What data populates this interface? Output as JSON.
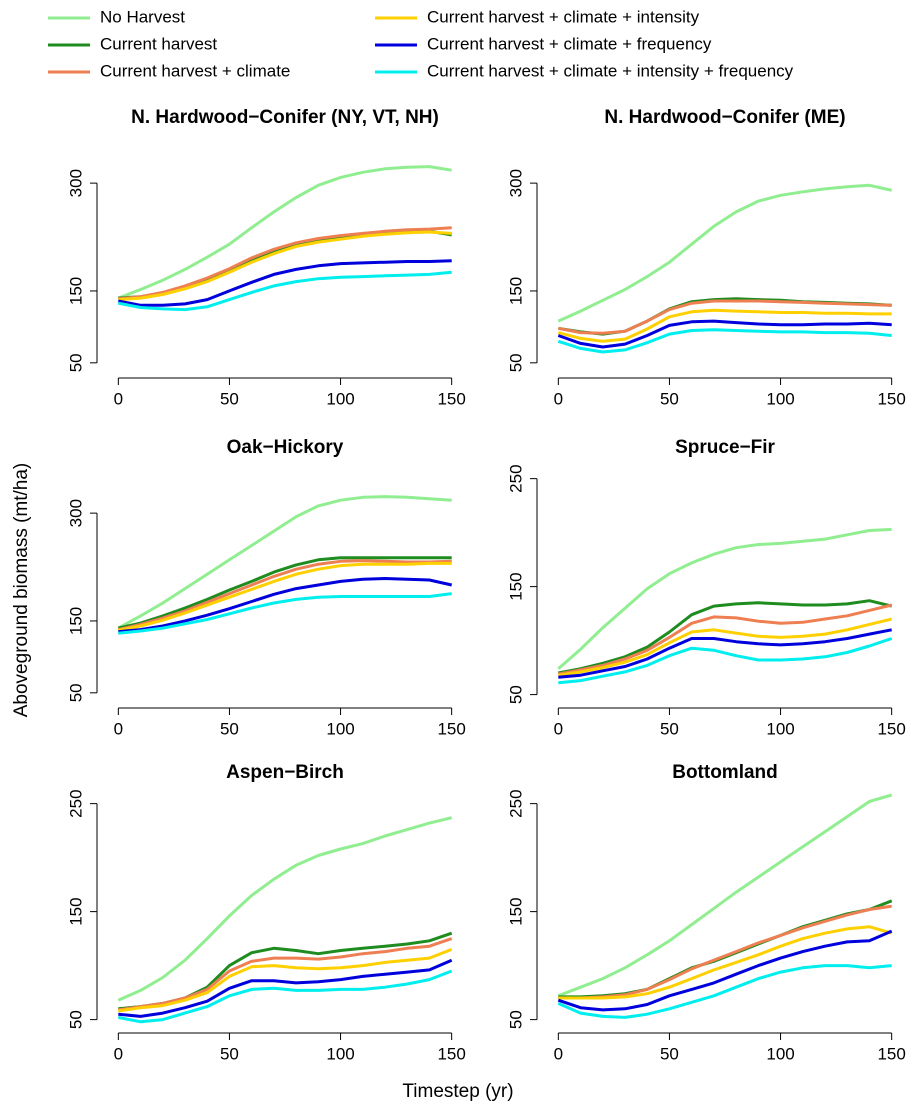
{
  "ylabel": "Aboveground biomass (mt/ha)",
  "xlabel": "Timestep (yr)",
  "chart_data": [
    {
      "type": "line",
      "title": "N. Hardwood−Conifer (NY, VT, NH)",
      "x": [
        0,
        10,
        20,
        30,
        40,
        50,
        60,
        70,
        80,
        90,
        100,
        110,
        120,
        130,
        140,
        150
      ],
      "xlim": [
        -6,
        156
      ],
      "ylim": [
        40,
        360
      ],
      "xticks": [
        0,
        50,
        100,
        150
      ],
      "yticks": [
        50,
        150,
        300
      ],
      "series": [
        {
          "name": "No Harvest",
          "color": "#90ee90",
          "values": [
            140,
            152,
            165,
            180,
            197,
            215,
            238,
            260,
            280,
            297,
            308,
            315,
            320,
            322,
            323,
            318
          ]
        },
        {
          "name": "Current harvest",
          "color": "#1f8c1f",
          "values": [
            140,
            142,
            147,
            155,
            165,
            178,
            192,
            205,
            215,
            221,
            225,
            228,
            230,
            232,
            233,
            228
          ]
        },
        {
          "name": "Current harvest + climate",
          "color": "#ee7f52",
          "values": [
            139,
            142,
            148,
            157,
            168,
            181,
            196,
            208,
            217,
            223,
            227,
            230,
            233,
            235,
            236,
            238
          ]
        },
        {
          "name": "Current harvest + climate + intensity",
          "color": "#ffd000",
          "values": [
            138,
            140,
            145,
            153,
            163,
            176,
            190,
            202,
            212,
            218,
            222,
            226,
            229,
            231,
            232,
            230
          ]
        },
        {
          "name": "Current harvest + climate + frequency",
          "color": "#0000dd",
          "values": [
            136,
            130,
            130,
            132,
            138,
            150,
            162,
            173,
            180,
            185,
            188,
            189,
            190,
            191,
            191,
            192
          ]
        },
        {
          "name": "Current harvest + climate + intensity + frequency",
          "color": "#00eeee",
          "values": [
            133,
            127,
            125,
            124,
            128,
            138,
            148,
            157,
            163,
            167,
            169,
            170,
            171,
            172,
            173,
            176
          ]
        }
      ]
    },
    {
      "type": "line",
      "title": "N. Hardwood−Conifer (ME)",
      "x": [
        0,
        10,
        20,
        30,
        40,
        50,
        60,
        70,
        80,
        90,
        100,
        110,
        120,
        130,
        140,
        150
      ],
      "xlim": [
        -6,
        156
      ],
      "ylim": [
        40,
        360
      ],
      "xticks": [
        0,
        50,
        100,
        150
      ],
      "yticks": [
        50,
        150,
        300
      ],
      "series": [
        {
          "name": "No Harvest",
          "color": "#90ee90",
          "values": [
            108,
            122,
            137,
            152,
            170,
            190,
            215,
            240,
            260,
            275,
            283,
            288,
            292,
            295,
            297,
            290
          ]
        },
        {
          "name": "Current harvest",
          "color": "#1f8c1f",
          "values": [
            98,
            93,
            90,
            94,
            108,
            125,
            135,
            138,
            139,
            138,
            137,
            135,
            134,
            133,
            132,
            130
          ]
        },
        {
          "name": "Current harvest + climate",
          "color": "#ee7f52",
          "values": [
            98,
            92,
            91,
            94,
            108,
            124,
            133,
            136,
            136,
            136,
            135,
            134,
            133,
            132,
            131,
            130
          ]
        },
        {
          "name": "Current harvest + climate + intensity",
          "color": "#ffd000",
          "values": [
            92,
            84,
            80,
            83,
            97,
            114,
            121,
            123,
            122,
            121,
            120,
            120,
            119,
            119,
            118,
            118
          ]
        },
        {
          "name": "Current harvest + climate + frequency",
          "color": "#0000dd",
          "values": [
            88,
            77,
            72,
            76,
            88,
            102,
            107,
            108,
            106,
            104,
            103,
            103,
            104,
            104,
            105,
            103
          ]
        },
        {
          "name": "Current harvest + climate + intensity + frequency",
          "color": "#00eeee",
          "values": [
            80,
            70,
            65,
            68,
            78,
            90,
            95,
            96,
            95,
            94,
            93,
            93,
            92,
            92,
            91,
            88
          ]
        }
      ]
    },
    {
      "type": "line",
      "title": "Oak−Hickory",
      "x": [
        0,
        10,
        20,
        30,
        40,
        50,
        60,
        70,
        80,
        90,
        100,
        110,
        120,
        130,
        140,
        150
      ],
      "xlim": [
        -6,
        156
      ],
      "ylim": [
        40,
        360
      ],
      "xticks": [
        0,
        50,
        100,
        150
      ],
      "yticks": [
        50,
        150,
        300
      ],
      "series": [
        {
          "name": "No Harvest",
          "color": "#90ee90",
          "values": [
            140,
            157,
            175,
            195,
            215,
            235,
            255,
            275,
            295,
            310,
            318,
            322,
            323,
            322,
            320,
            318
          ]
        },
        {
          "name": "Current harvest",
          "color": "#1f8c1f",
          "values": [
            140,
            147,
            157,
            168,
            180,
            193,
            205,
            218,
            228,
            235,
            238,
            238,
            238,
            238,
            238,
            238
          ]
        },
        {
          "name": "Current harvest + climate",
          "color": "#ee7f52",
          "values": [
            138,
            145,
            154,
            164,
            176,
            188,
            200,
            212,
            222,
            229,
            233,
            234,
            233,
            232,
            232,
            233
          ]
        },
        {
          "name": "Current harvest + climate + intensity",
          "color": "#ffd000",
          "values": [
            137,
            143,
            151,
            161,
            172,
            183,
            194,
            205,
            215,
            222,
            227,
            229,
            229,
            229,
            230,
            230
          ]
        },
        {
          "name": "Current harvest + climate + frequency",
          "color": "#0000dd",
          "values": [
            135,
            138,
            143,
            150,
            158,
            167,
            177,
            187,
            195,
            200,
            205,
            208,
            209,
            208,
            207,
            200
          ]
        },
        {
          "name": "Current harvest + climate + intensity + frequency",
          "color": "#00eeee",
          "values": [
            133,
            136,
            140,
            146,
            152,
            160,
            168,
            175,
            180,
            183,
            184,
            184,
            184,
            184,
            184,
            188
          ]
        }
      ]
    },
    {
      "type": "line",
      "title": "Spruce−Fir",
      "x": [
        0,
        10,
        20,
        30,
        40,
        50,
        60,
        70,
        80,
        90,
        100,
        110,
        120,
        130,
        140,
        150
      ],
      "xlim": [
        -6,
        156
      ],
      "ylim": [
        45,
        258
      ],
      "xticks": [
        0,
        50,
        100,
        150
      ],
      "yticks": [
        50,
        150,
        250
      ],
      "series": [
        {
          "name": "No Harvest",
          "color": "#90ee90",
          "values": [
            74,
            92,
            112,
            130,
            148,
            162,
            172,
            180,
            186,
            189,
            190,
            192,
            194,
            198,
            202,
            203
          ]
        },
        {
          "name": "Current harvest",
          "color": "#1f8c1f",
          "values": [
            70,
            74,
            79,
            85,
            94,
            108,
            124,
            132,
            134,
            135,
            134,
            133,
            133,
            134,
            137,
            132
          ]
        },
        {
          "name": "Current harvest + climate",
          "color": "#ee7f52",
          "values": [
            69,
            73,
            77,
            83,
            91,
            103,
            116,
            122,
            121,
            118,
            116,
            117,
            120,
            123,
            128,
            133
          ]
        },
        {
          "name": "Current harvest + climate + intensity",
          "color": "#ffd000",
          "values": [
            68,
            71,
            75,
            80,
            87,
            98,
            108,
            110,
            107,
            104,
            103,
            104,
            106,
            110,
            115,
            120
          ]
        },
        {
          "name": "Current harvest + climate + frequency",
          "color": "#0000dd",
          "values": [
            66,
            68,
            72,
            76,
            83,
            93,
            102,
            102,
            99,
            97,
            96,
            97,
            99,
            102,
            106,
            110
          ]
        },
        {
          "name": "Current harvest + climate + intensity + frequency",
          "color": "#00eeee",
          "values": [
            61,
            63,
            67,
            71,
            77,
            86,
            93,
            91,
            86,
            82,
            82,
            83,
            85,
            89,
            95,
            102
          ]
        }
      ]
    },
    {
      "type": "line",
      "title": "Aspen−Birch",
      "x": [
        0,
        10,
        20,
        30,
        40,
        50,
        60,
        70,
        80,
        90,
        100,
        110,
        120,
        130,
        140,
        150
      ],
      "xlim": [
        -6,
        156
      ],
      "ylim": [
        45,
        258
      ],
      "xticks": [
        0,
        50,
        100,
        150
      ],
      "yticks": [
        50,
        150,
        250
      ],
      "series": [
        {
          "name": "No Harvest",
          "color": "#90ee90",
          "values": [
            68,
            77,
            89,
            105,
            125,
            146,
            165,
            180,
            193,
            202,
            208,
            213,
            220,
            226,
            232,
            237
          ]
        },
        {
          "name": "Current harvest",
          "color": "#1f8c1f",
          "values": [
            60,
            62,
            65,
            70,
            80,
            100,
            112,
            116,
            114,
            111,
            114,
            116,
            118,
            120,
            123,
            130
          ]
        },
        {
          "name": "Current harvest + climate",
          "color": "#ee7f52",
          "values": [
            59,
            62,
            65,
            70,
            78,
            95,
            104,
            107,
            107,
            106,
            108,
            111,
            113,
            116,
            118,
            125
          ]
        },
        {
          "name": "Current harvest + climate + intensity",
          "color": "#ffd000",
          "values": [
            58,
            61,
            63,
            68,
            75,
            90,
            99,
            100,
            98,
            97,
            98,
            100,
            103,
            105,
            107,
            115
          ]
        },
        {
          "name": "Current harvest + climate + frequency",
          "color": "#0000dd",
          "values": [
            55,
            53,
            56,
            61,
            67,
            79,
            86,
            86,
            84,
            85,
            87,
            90,
            92,
            94,
            96,
            105
          ]
        },
        {
          "name": "Current harvest + climate + intensity + frequency",
          "color": "#00eeee",
          "values": [
            52,
            48,
            50,
            56,
            62,
            72,
            78,
            79,
            77,
            77,
            78,
            78,
            80,
            83,
            87,
            95
          ]
        }
      ]
    },
    {
      "type": "line",
      "title": "Bottomland",
      "x": [
        0,
        10,
        20,
        30,
        40,
        50,
        60,
        70,
        80,
        90,
        100,
        110,
        120,
        130,
        140,
        150
      ],
      "xlim": [
        -6,
        156
      ],
      "ylim": [
        45,
        258
      ],
      "xticks": [
        0,
        50,
        100,
        150
      ],
      "yticks": [
        50,
        150,
        250
      ],
      "series": [
        {
          "name": "No Harvest",
          "color": "#90ee90",
          "values": [
            72,
            80,
            88,
            98,
            110,
            123,
            138,
            153,
            168,
            182,
            196,
            210,
            224,
            238,
            252,
            258
          ]
        },
        {
          "name": "Current harvest",
          "color": "#1f8c1f",
          "values": [
            71,
            71,
            72,
            74,
            78,
            88,
            98,
            104,
            112,
            120,
            128,
            136,
            142,
            148,
            152,
            160
          ]
        },
        {
          "name": "Current harvest + climate",
          "color": "#ee7f52",
          "values": [
            70,
            70,
            71,
            73,
            78,
            87,
            97,
            105,
            113,
            121,
            128,
            135,
            141,
            147,
            152,
            155
          ]
        },
        {
          "name": "Current harvest + climate + intensity",
          "color": "#ffd000",
          "values": [
            70,
            70,
            70,
            71,
            74,
            80,
            88,
            96,
            103,
            110,
            118,
            125,
            130,
            134,
            136,
            130
          ]
        },
        {
          "name": "Current harvest + climate + frequency",
          "color": "#0000dd",
          "values": [
            68,
            61,
            59,
            60,
            64,
            72,
            78,
            84,
            92,
            100,
            107,
            113,
            118,
            122,
            123,
            132
          ]
        },
        {
          "name": "Current harvest + climate + intensity + frequency",
          "color": "#00eeee",
          "values": [
            65,
            56,
            53,
            52,
            55,
            60,
            66,
            72,
            80,
            88,
            94,
            98,
            100,
            100,
            98,
            100
          ]
        }
      ]
    }
  ]
}
